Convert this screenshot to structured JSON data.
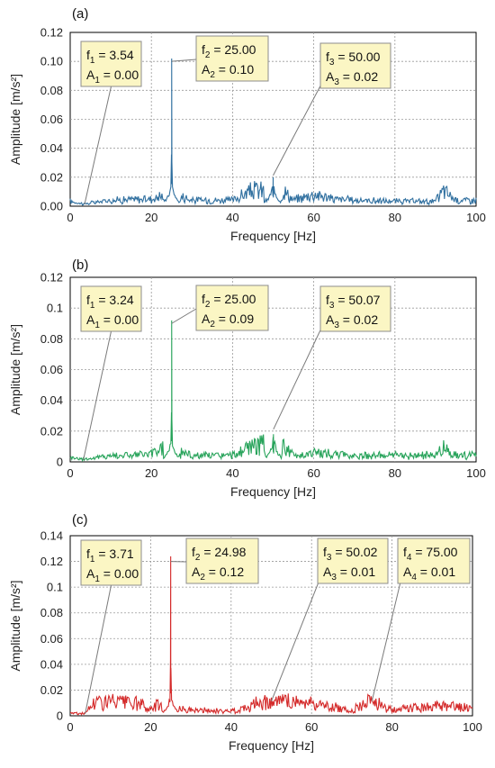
{
  "chart_data": [
    {
      "type": "line",
      "panel_label": "(a)",
      "xlabel": "Frequency [Hz]",
      "ylabel": "Amplitude [m/s²]",
      "xlim": [
        0,
        100
      ],
      "ylim": [
        0,
        0.12
      ],
      "xticks": [
        "0",
        "20",
        "40",
        "60",
        "80",
        "100"
      ],
      "yticks": [
        "0.00",
        "0.02",
        "0.04",
        "0.06",
        "0.08",
        "0.10",
        "0.12"
      ],
      "grid": true,
      "color": "#2f6f9f",
      "noise_level": 0.003,
      "series": [
        {
          "x": [
            0,
            3.54,
            10,
            20,
            23,
            24,
            25,
            26,
            27,
            30,
            40,
            50,
            55,
            60,
            65,
            70,
            80,
            90,
            92,
            95,
            100
          ],
          "y": [
            0.003,
            0.001,
            0.004,
            0.005,
            0.008,
            0.012,
            0.102,
            0.016,
            0.008,
            0.004,
            0.004,
            0.02,
            0.004,
            0.009,
            0.005,
            0.004,
            0.003,
            0.003,
            0.012,
            0.004,
            0.004
          ]
        }
      ],
      "annotations": [
        {
          "f_sym": "f",
          "f_sub": "1",
          "f_val": "3.54",
          "a_sym": "A",
          "a_sub": "1",
          "a_val": "0.00",
          "x": 3.54,
          "y": 0.0
        },
        {
          "f_sym": "f",
          "f_sub": "2",
          "f_val": "25.00",
          "a_sym": "A",
          "a_sub": "2",
          "a_val": "0.10",
          "x": 25.0,
          "y": 0.1
        },
        {
          "f_sym": "f",
          "f_sub": "3",
          "f_val": "50.00",
          "a_sym": "A",
          "a_sub": "3",
          "a_val": "0.02",
          "x": 50.0,
          "y": 0.02
        }
      ]
    },
    {
      "type": "line",
      "panel_label": "(b)",
      "xlabel": "Frequency [Hz]",
      "ylabel": "Amplitude [m/s²]",
      "xlim": [
        0,
        100
      ],
      "ylim": [
        0,
        0.12
      ],
      "xticks": [
        "0",
        "20",
        "40",
        "60",
        "80",
        "100"
      ],
      "yticks": [
        "0",
        "0.02",
        "0.04",
        "0.06",
        "0.08",
        "0.1",
        "0.12"
      ],
      "grid": true,
      "color": "#27a35a",
      "noise_level": 0.003,
      "series": [
        {
          "x": [
            0,
            3.24,
            10,
            20,
            24,
            25,
            26,
            27,
            30,
            40,
            50.07,
            55,
            60,
            70,
            80,
            90,
            92,
            95,
            100
          ],
          "y": [
            0.003,
            0.001,
            0.004,
            0.005,
            0.012,
            0.092,
            0.02,
            0.008,
            0.004,
            0.004,
            0.018,
            0.004,
            0.006,
            0.004,
            0.004,
            0.004,
            0.01,
            0.004,
            0.004
          ]
        }
      ],
      "annotations": [
        {
          "f_sym": "f",
          "f_sub": "1",
          "f_val": "3.24",
          "a_sym": "A",
          "a_sub": "1",
          "a_val": "0.00",
          "x": 3.24,
          "y": 0.0
        },
        {
          "f_sym": "f",
          "f_sub": "2",
          "f_val": "25.00",
          "a_sym": "A",
          "a_sub": "2",
          "a_val": "0.09",
          "x": 25.0,
          "y": 0.09
        },
        {
          "f_sym": "f",
          "f_sub": "3",
          "f_val": "50.07",
          "a_sym": "A",
          "a_sub": "3",
          "a_val": "0.02",
          "x": 50.07,
          "y": 0.02
        }
      ]
    },
    {
      "type": "line",
      "panel_label": "(c)",
      "xlabel": "Frequency [Hz]",
      "ylabel": "Amplitude [m/s²]",
      "xlim": [
        0,
        100
      ],
      "ylim": [
        0,
        0.14
      ],
      "xticks": [
        "0",
        "20",
        "40",
        "60",
        "80",
        "100"
      ],
      "yticks": [
        "0",
        "0.02",
        "0.04",
        "0.06",
        "0.08",
        "0.1",
        "0.12",
        "0.14"
      ],
      "grid": true,
      "color": "#d42a2a",
      "noise_level": 0.003,
      "series": [
        {
          "x": [
            0,
            3.71,
            6,
            10,
            17,
            20,
            24,
            24.98,
            26,
            30,
            40,
            50.02,
            54,
            58,
            59,
            60,
            70,
            75,
            80,
            90,
            100
          ],
          "y": [
            0.002,
            0.001,
            0.012,
            0.012,
            0.01,
            0.004,
            0.02,
            0.124,
            0.01,
            0.004,
            0.003,
            0.014,
            0.012,
            0.012,
            0.014,
            0.01,
            0.004,
            0.014,
            0.004,
            0.008,
            0.006
          ]
        }
      ],
      "annotations": [
        {
          "f_sym": "f",
          "f_sub": "1",
          "f_val": "3.71",
          "a_sym": "A",
          "a_sub": "1",
          "a_val": "0.00",
          "x": 3.71,
          "y": 0.0
        },
        {
          "f_sym": "f",
          "f_sub": "2",
          "f_val": "24.98",
          "a_sym": "A",
          "a_sub": "2",
          "a_val": "0.12",
          "x": 24.98,
          "y": 0.12
        },
        {
          "f_sym": "f",
          "f_sub": "3",
          "f_val": "50.02",
          "a_sym": "A",
          "a_sub": "3",
          "a_val": "0.01",
          "x": 50.02,
          "y": 0.01
        },
        {
          "f_sym": "f",
          "f_sub": "4",
          "f_val": "75.00",
          "a_sym": "A",
          "a_sub": "4",
          "a_val": "0.01",
          "x": 75.0,
          "y": 0.01
        }
      ]
    }
  ]
}
